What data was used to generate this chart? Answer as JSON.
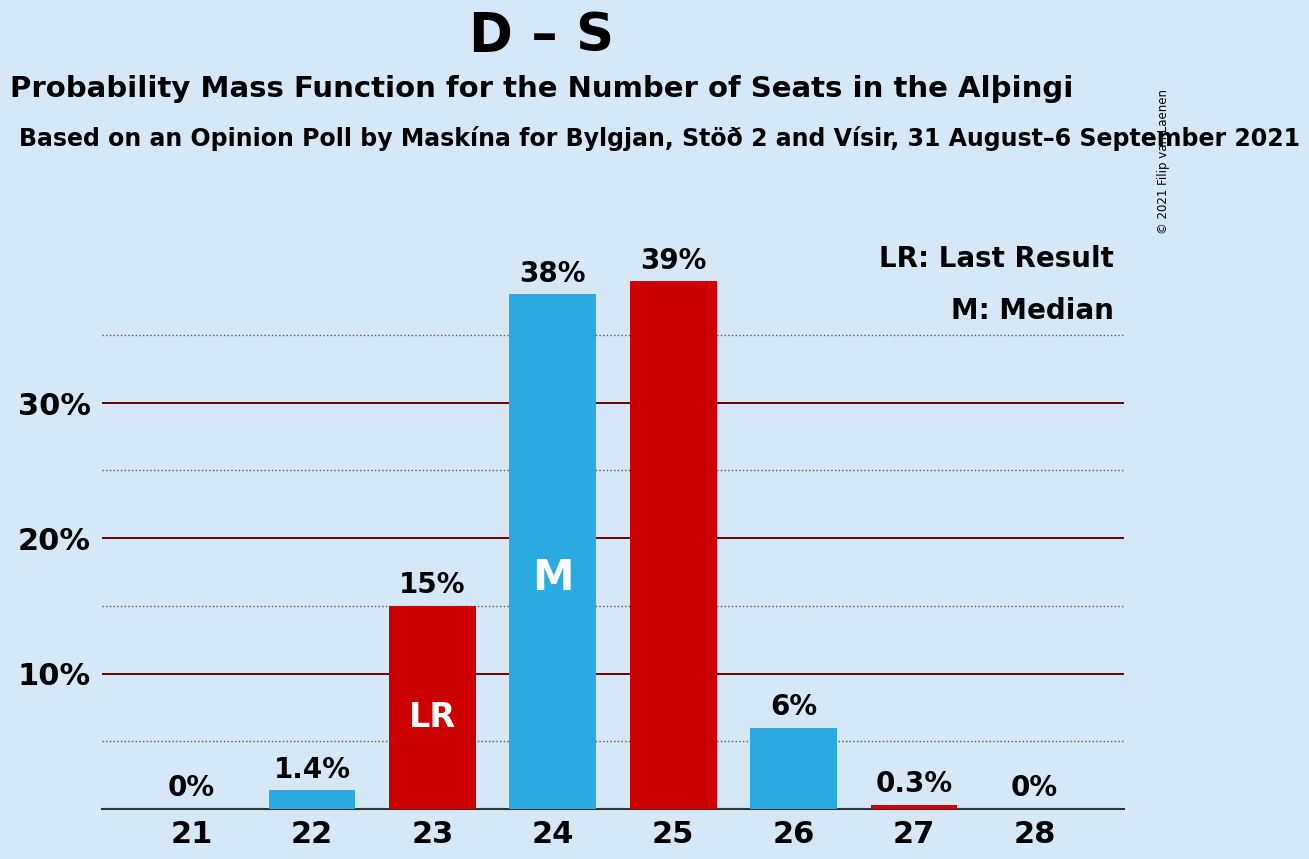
{
  "title": "D – S",
  "subtitle": "Probability Mass Function for the Number of Seats in the Alþingi",
  "source_line": "Based on an Opinion Poll by Maskína for Bylgjan, Stöð 2 and Vísir, 31 August–6 September 2021",
  "copyright": "© 2021 Filip van Laenen",
  "seats": [
    21,
    22,
    23,
    24,
    25,
    26,
    27,
    28
  ],
  "bar_heights": [
    0.0,
    1.4,
    15.0,
    38.0,
    39.0,
    6.0,
    0.3,
    0.0
  ],
  "bar_colors": [
    "#29ABE2",
    "#29ABE2",
    "#CC0000",
    "#29ABE2",
    "#CC0000",
    "#29ABE2",
    "#CC0000",
    "#29ABE2"
  ],
  "bar_labels": [
    "0%",
    "1.4%",
    "15%",
    "38%",
    "39%",
    "6%",
    "0.3%",
    "0%"
  ],
  "lr_bar_index": 2,
  "median_bar_index": 3,
  "bar_color_blue": "#29ABE2",
  "bar_color_red": "#CC0000",
  "background_color": "#D6E8F5",
  "grid_color_solid": "#6B0000",
  "grid_color_dotted": "#555555",
  "yticks_solid": [
    10,
    20,
    30
  ],
  "yticks_dotted": [
    5,
    15,
    25,
    35
  ],
  "ylim": [
    0,
    43
  ],
  "legend_lr": "LR: Last Result",
  "legend_m": "M: Median",
  "title_fontsize": 38,
  "subtitle_fontsize": 21,
  "source_fontsize": 17,
  "bar_label_fontsize": 20,
  "axis_tick_fontsize": 22,
  "legend_fontsize": 20,
  "inside_label_fontsize_lr": 24,
  "inside_label_fontsize_m": 30
}
